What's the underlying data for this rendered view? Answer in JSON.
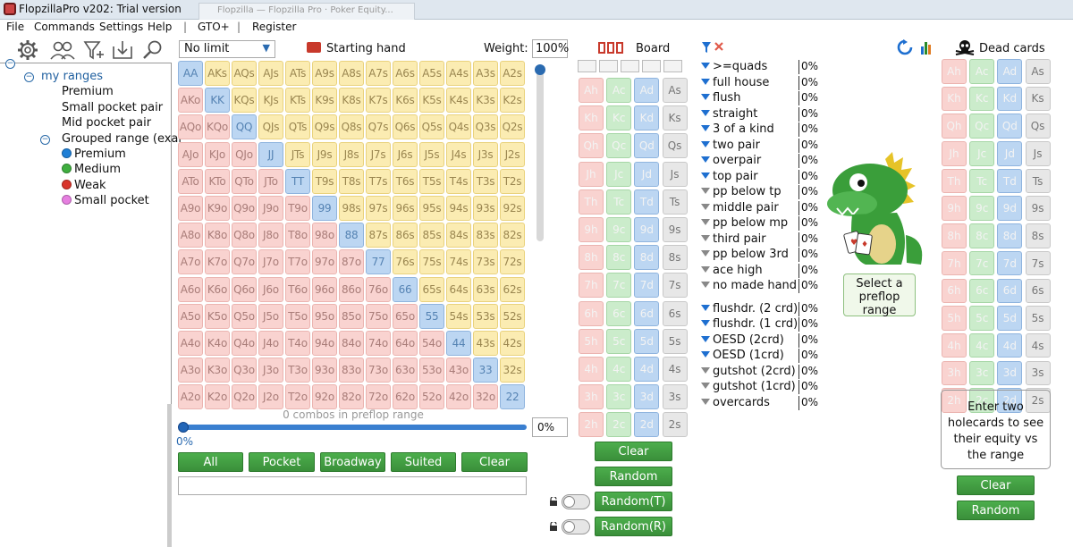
{
  "window": {
    "title": "FlopzillaPro v202: Trial version",
    "bg_tab": "Flopzilla — Flopzilla Pro · Poker Equity..."
  },
  "menu": [
    "File",
    "Commands",
    "Settings",
    "Help",
    "|",
    "GTO+",
    "|",
    "Register"
  ],
  "toolbar_icons": [
    "gear-icon",
    "users-icon",
    "filter-plus-icon",
    "import-icon",
    "search-icon"
  ],
  "tree": {
    "root": "my ranges",
    "items": [
      "Premium",
      "Small pocket pair",
      "Mid pocket pair"
    ],
    "group": "Grouped range (exar",
    "group_items": [
      {
        "label": "Premium",
        "color": "#1f7fd6"
      },
      {
        "label": "Medium",
        "color": "#3fae3f"
      },
      {
        "label": "Weak",
        "color": "#d9342b"
      },
      {
        "label": "Small pocket",
        "color": "#e67fe0"
      }
    ]
  },
  "range": {
    "limit_select": "No limit",
    "starting_hand_label": "Starting hand",
    "weight_label": "Weight:",
    "weight_value": "100%",
    "ranks": [
      "A",
      "K",
      "Q",
      "J",
      "T",
      "9",
      "8",
      "7",
      "6",
      "5",
      "4",
      "3",
      "2"
    ],
    "combos_text": "0 combos in preflop range",
    "percent_left": "0%",
    "percent_box": "0%",
    "buttons": [
      "All",
      "Pocket",
      "Broadway",
      "Suited",
      "Clear"
    ]
  },
  "board": {
    "title": "Board",
    "slots": 5,
    "suits": [
      "h",
      "c",
      "d",
      "s"
    ],
    "buttons": {
      "clear": "Clear",
      "random": "Random",
      "random_t": "Random(T)",
      "random_r": "Random(R)"
    }
  },
  "filters": {
    "made_hands": [
      {
        "label": ">=quads",
        "pct": "0%",
        "active": true
      },
      {
        "label": "full house",
        "pct": "0%",
        "active": true
      },
      {
        "label": "flush",
        "pct": "0%",
        "active": true
      },
      {
        "label": "straight",
        "pct": "0%",
        "active": true
      },
      {
        "label": "3 of a kind",
        "pct": "0%",
        "active": true
      },
      {
        "label": "two pair",
        "pct": "0%",
        "active": true
      },
      {
        "label": "overpair",
        "pct": "0%",
        "active": true
      },
      {
        "label": "top pair",
        "pct": "0%",
        "active": true
      },
      {
        "label": "pp below tp",
        "pct": "0%",
        "active": false
      },
      {
        "label": "middle pair",
        "pct": "0%",
        "active": false
      },
      {
        "label": "pp below mp",
        "pct": "0%",
        "active": false
      },
      {
        "label": "third pair",
        "pct": "0%",
        "active": false
      },
      {
        "label": "pp below 3rd",
        "pct": "0%",
        "active": false
      },
      {
        "label": "ace high",
        "pct": "0%",
        "active": false
      },
      {
        "label": "no made hand",
        "pct": "0%",
        "active": false
      }
    ],
    "draws": [
      {
        "label": "flushdr. (2 crd)",
        "pct": "0%",
        "active": true
      },
      {
        "label": "flushdr. (1 crd)",
        "pct": "0%",
        "active": true
      },
      {
        "label": "OESD (2crd)",
        "pct": "0%",
        "active": true
      },
      {
        "label": "OESD (1crd)",
        "pct": "0%",
        "active": true
      },
      {
        "label": "gutshot (2crd)",
        "pct": "0%",
        "active": false
      },
      {
        "label": "gutshot (1crd)",
        "pct": "0%",
        "active": false
      },
      {
        "label": "overcards",
        "pct": "0%",
        "active": false
      }
    ]
  },
  "select_prompt": "Select a preflop range",
  "dead": {
    "title": "Dead cards",
    "equity_text": "Enter two holecards to see their equity vs the range",
    "buttons": {
      "clear": "Clear",
      "random": "Random"
    }
  }
}
